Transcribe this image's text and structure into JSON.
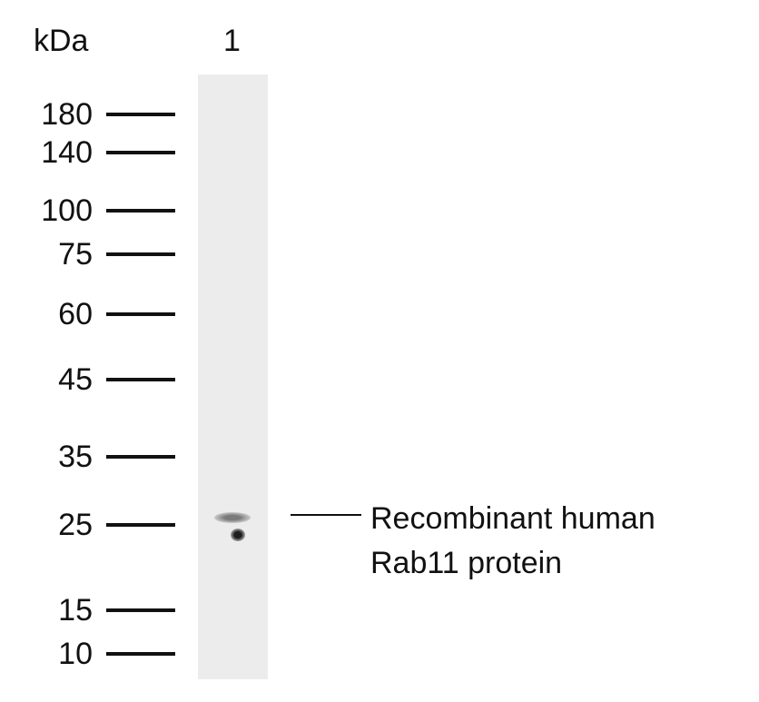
{
  "unit_label": "kDa",
  "lanes": [
    "1"
  ],
  "markers": [
    "180",
    "140",
    "100",
    "75",
    "60",
    "45",
    "35",
    "25",
    "15",
    "10"
  ],
  "annotation": {
    "line1": "Recombinant human",
    "line2": "Rab11 protein"
  }
}
